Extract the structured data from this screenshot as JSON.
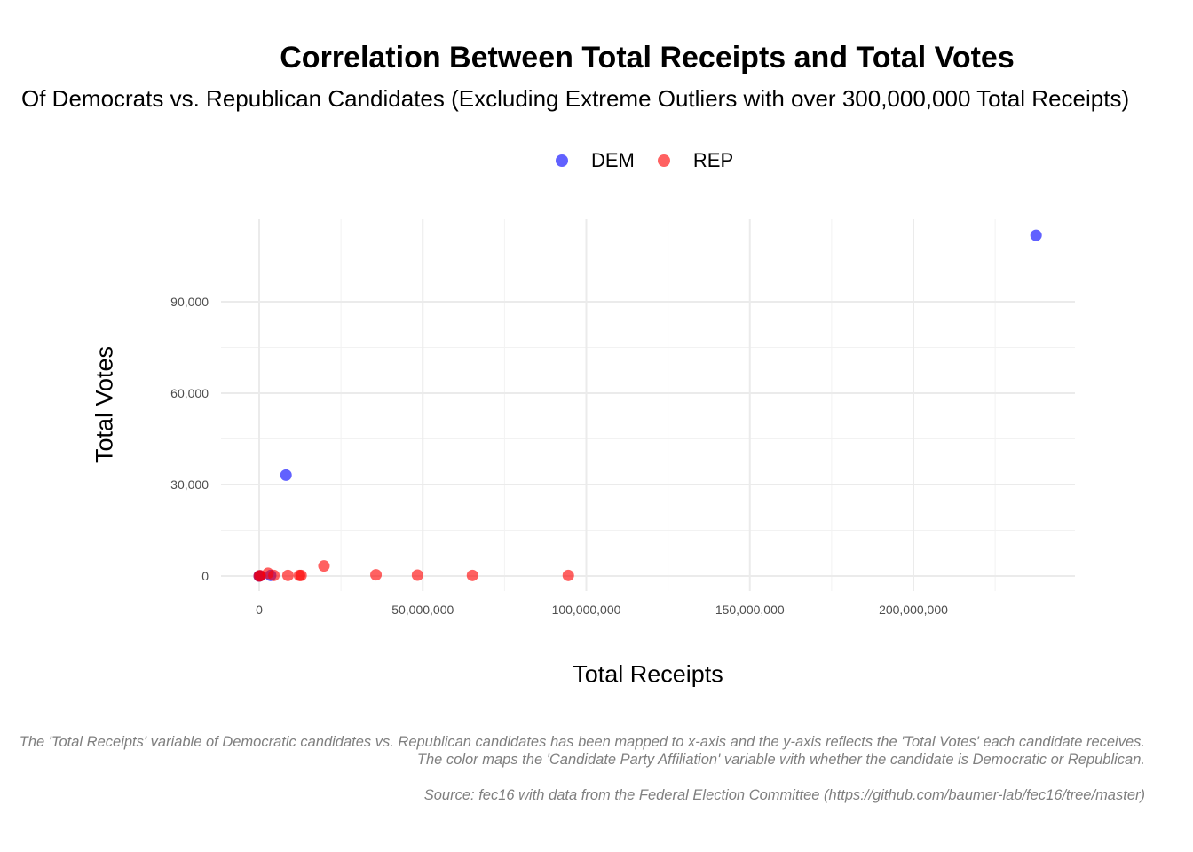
{
  "chart_data": {
    "type": "scatter",
    "title": "Correlation Between Total Receipts and Total Votes",
    "subtitle": "Of Democrats vs. Republican Candidates (Excluding Extreme Outliers with over 300,000,000 Total Receipts)",
    "xlabel": "Total Receipts",
    "ylabel": "Total Votes",
    "xlim": [
      -11500000,
      249000000
    ],
    "ylim": [
      -4500000,
      117000
    ],
    "ylim_note_removed": true,
    "x_ticks": [
      0,
      50000000,
      100000000,
      150000000,
      200000000
    ],
    "x_tick_labels": [
      "0",
      "50,000,000",
      "100,000,000",
      "150,000,000",
      "200,000,000"
    ],
    "y_ticks": [
      0,
      30000,
      60000,
      90000
    ],
    "y_tick_labels": [
      "0",
      "30,000",
      "60,000",
      "90,000"
    ],
    "grid": true,
    "legend_position": "top",
    "series": [
      {
        "name": "DEM",
        "color": "#0000ff",
        "points": [
          {
            "x": 0,
            "y": 0
          },
          {
            "x": 200000,
            "y": 50
          },
          {
            "x": 3500000,
            "y": 200
          },
          {
            "x": 8200000,
            "y": 33100
          },
          {
            "x": 237500000,
            "y": 111800
          }
        ]
      },
      {
        "name": "REP",
        "color": "#ff0000",
        "points": [
          {
            "x": 0,
            "y": 0
          },
          {
            "x": 300000,
            "y": 100
          },
          {
            "x": 2700000,
            "y": 900
          },
          {
            "x": 4500000,
            "y": 200
          },
          {
            "x": 8800000,
            "y": 200
          },
          {
            "x": 12300000,
            "y": 200
          },
          {
            "x": 12800000,
            "y": 200
          },
          {
            "x": 19800000,
            "y": 3300
          },
          {
            "x": 35700000,
            "y": 400
          },
          {
            "x": 48400000,
            "y": 300
          },
          {
            "x": 65200000,
            "y": 200
          },
          {
            "x": 94500000,
            "y": 200
          }
        ]
      }
    ]
  },
  "caption": {
    "line1": "The 'Total Receipts' variable of Democratic candidates vs. Republican candidates has been mapped to x-axis and the y-axis reflects the 'Total Votes' each candidate receives.",
    "line2": "The  color maps the 'Candidate Party Affiliation' variable with whether the candidate is Democratic or Republican.",
    "source": "Source: fec16 with data from the Federal Election Committee (https://github.com/baumer-lab/fec16/tree/master)"
  }
}
